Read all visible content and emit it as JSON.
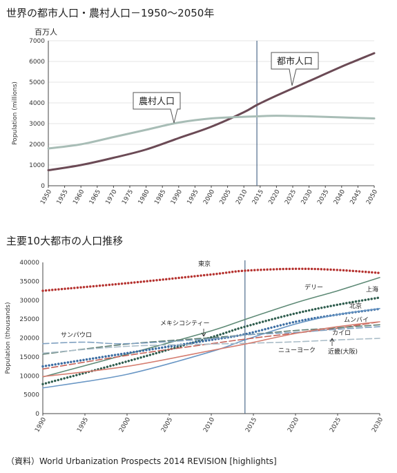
{
  "titles": {
    "top": "世界の都市人口・農村人口－1950～2050年",
    "bottom": "主要10大都市の人口推移",
    "unit": "百万人",
    "source": "（資料）World Urbanization Prospects 2014 REVISION [highlights]"
  },
  "chart_data": [
    {
      "type": "line",
      "title": "世界の都市人口・農村人口－1950～2050年",
      "ylabel": "Population (millions)",
      "xlabel": "",
      "xlim": [
        1950,
        2050
      ],
      "ylim": [
        0,
        7000
      ],
      "x_ticks": [
        1950,
        1955,
        1960,
        1965,
        1970,
        1975,
        1980,
        1985,
        1990,
        1995,
        2000,
        2005,
        2010,
        2015,
        2020,
        2025,
        2030,
        2035,
        2040,
        2045,
        2050
      ],
      "y_ticks": [
        0,
        1000,
        2000,
        3000,
        4000,
        5000,
        6000,
        7000
      ],
      "reference_line_x": 2014,
      "series": [
        {
          "name": "都市人口",
          "color": "#6b4a55",
          "x": [
            1950,
            1960,
            1970,
            1980,
            1990,
            2000,
            2010,
            2014,
            2020,
            2030,
            2040,
            2050
          ],
          "values": [
            750,
            1000,
            1350,
            1750,
            2300,
            2850,
            3550,
            3900,
            4350,
            5050,
            5750,
            6400
          ]
        },
        {
          "name": "農村人口",
          "color": "#a8bdb6",
          "x": [
            1950,
            1960,
            1970,
            1980,
            1990,
            2000,
            2010,
            2014,
            2020,
            2030,
            2040,
            2050
          ],
          "values": [
            1800,
            2000,
            2350,
            2700,
            3050,
            3250,
            3330,
            3350,
            3380,
            3350,
            3300,
            3250
          ]
        }
      ]
    },
    {
      "type": "line",
      "title": "主要10大都市の人口推移",
      "ylabel": "Population (thousands)",
      "xlabel": "",
      "xlim": [
        1990,
        2030
      ],
      "ylim": [
        0,
        40000
      ],
      "x_ticks": [
        1990,
        1995,
        2000,
        2005,
        2010,
        2015,
        2020,
        2025,
        2030
      ],
      "y_ticks": [
        0,
        5000,
        10000,
        15000,
        20000,
        25000,
        30000,
        35000,
        40000
      ],
      "reference_line_x": 2014,
      "series": [
        {
          "name": "東京",
          "color": "#b5322f",
          "style": "dotted",
          "x": [
            1990,
            2000,
            2010,
            2014,
            2020,
            2025,
            2030
          ],
          "values": [
            32500,
            34500,
            36800,
            37800,
            38300,
            38000,
            37200
          ]
        },
        {
          "name": "デリー",
          "color": "#5e8a76",
          "style": "solid",
          "x": [
            1990,
            2000,
            2010,
            2014,
            2020,
            2025,
            2030
          ],
          "values": [
            9700,
            15700,
            21900,
            24900,
            29300,
            32500,
            36000
          ]
        },
        {
          "name": "上海",
          "color": "#2f5d4e",
          "style": "dotted",
          "x": [
            1990,
            2000,
            2010,
            2014,
            2020,
            2025,
            2030
          ],
          "values": [
            7800,
            13800,
            20200,
            23000,
            26500,
            28800,
            30700
          ]
        },
        {
          "name": "北京",
          "color": "#3d6ea3",
          "style": "dotted",
          "x": [
            1990,
            2000,
            2010,
            2014,
            2020,
            2025,
            2030
          ],
          "values": [
            12500,
            16000,
            19500,
            21000,
            24300,
            26200,
            27700
          ]
        },
        {
          "name": "ムンバイ",
          "color": "#6a97c5",
          "style": "solid",
          "x": [
            1990,
            2000,
            2010,
            2014,
            2020,
            2025,
            2030
          ],
          "values": [
            6800,
            10400,
            16400,
            19500,
            23700,
            26200,
            27800
          ]
        },
        {
          "name": "カイロ",
          "color": "#c46258",
          "style": "dashed",
          "x": [
            1990,
            2000,
            2010,
            2014,
            2020,
            2025,
            2030
          ],
          "values": [
            11800,
            15400,
            18500,
            19700,
            21300,
            22600,
            24300
          ]
        },
        {
          "name": "メキシコシティー",
          "color": "#5e7e72",
          "style": "dashed",
          "x": [
            1990,
            2000,
            2010,
            2014,
            2020,
            2025,
            2030
          ],
          "values": [
            15700,
            18400,
            20100,
            20800,
            22000,
            22700,
            23500
          ]
        },
        {
          "name": "サンパウロ",
          "color": "#7fa0c0",
          "style": "dashed",
          "x": [
            1990,
            1995,
            2000,
            2010,
            2014,
            2020,
            2025,
            2030
          ],
          "values": [
            18500,
            18900,
            18500,
            19800,
            20800,
            21500,
            22300,
            23000
          ]
        },
        {
          "name": "ニューヨーク",
          "color": "#a9bcc7",
          "style": "dashed",
          "x": [
            1990,
            2000,
            2010,
            2014,
            2020,
            2025,
            2030
          ],
          "values": [
            16000,
            17800,
            18400,
            18600,
            19000,
            19500,
            19900
          ]
        },
        {
          "name": "近畿(大阪)",
          "color": "#d57d70",
          "style": "solid",
          "x": [
            1990,
            2000,
            2010,
            2014,
            2020,
            2025,
            2030
          ],
          "values": [
            9800,
            12500,
            16700,
            18400,
            21200,
            23000,
            24300
          ]
        }
      ]
    }
  ],
  "callouts": {
    "urban": "都市人口",
    "rural": "農村人口"
  },
  "city_labels": {
    "tokyo": "東京",
    "delhi": "デリー",
    "shanghai": "上海",
    "beijing": "北京",
    "mumbai": "ムンバイ",
    "cairo": "カイロ",
    "mexico": "メキシコシティー",
    "saopaulo": "サンパウロ",
    "newyork": "ニューヨーク",
    "osaka": "近畿(大阪)"
  }
}
